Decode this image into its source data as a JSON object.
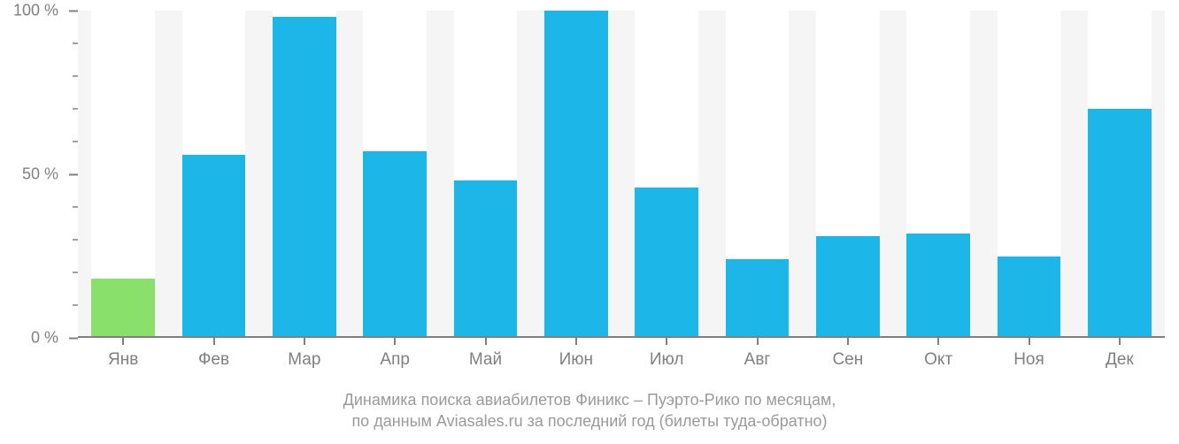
{
  "chart": {
    "type": "bar",
    "background_color": "#ffffff",
    "plot_background_color": "#f5f5f5",
    "bar_slot_color": "#ffffff",
    "axis_color": "#808080",
    "label_color": "#808080",
    "caption_color": "#9a9a9a",
    "label_fontsize": 19,
    "caption_fontsize": 18,
    "ylim": [
      0,
      100
    ],
    "y_major_ticks": [
      0,
      50,
      100
    ],
    "y_major_labels": [
      "0 %",
      "50 %",
      "100 %"
    ],
    "y_minor_step": 10,
    "bar_width_ratio": 0.7,
    "colors": {
      "current_month": "#89e06a",
      "other_month": "#1cb6e8"
    },
    "months": [
      {
        "label": "Янв",
        "value": 18,
        "color": "#89e06a"
      },
      {
        "label": "Фев",
        "value": 56,
        "color": "#1cb6e8"
      },
      {
        "label": "Мар",
        "value": 98,
        "color": "#1cb6e8"
      },
      {
        "label": "Апр",
        "value": 57,
        "color": "#1cb6e8"
      },
      {
        "label": "Май",
        "value": 48,
        "color": "#1cb6e8"
      },
      {
        "label": "Июн",
        "value": 105,
        "color": "#1cb6e8"
      },
      {
        "label": "Июл",
        "value": 46,
        "color": "#1cb6e8"
      },
      {
        "label": "Авг",
        "value": 24,
        "color": "#1cb6e8"
      },
      {
        "label": "Сен",
        "value": 31,
        "color": "#1cb6e8"
      },
      {
        "label": "Окт",
        "value": 32,
        "color": "#1cb6e8"
      },
      {
        "label": "Ноя",
        "value": 25,
        "color": "#1cb6e8"
      },
      {
        "label": "Дек",
        "value": 70,
        "color": "#1cb6e8"
      }
    ],
    "caption_line1": "Динамика поиска авиабилетов Финикс – Пуэрто-Рико по месяцам,",
    "caption_line2": "по данным Aviasales.ru за последний год (билеты туда-обратно)"
  }
}
